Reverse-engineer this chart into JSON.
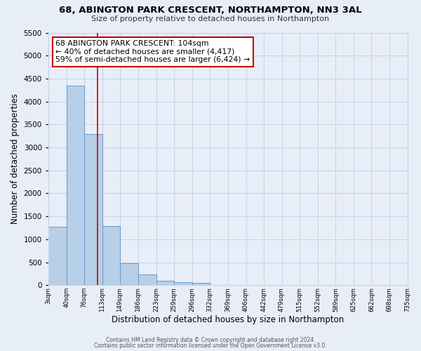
{
  "title": "68, ABINGTON PARK CRESCENT, NORTHAMPTON, NN3 3AL",
  "subtitle": "Size of property relative to detached houses in Northampton",
  "xlabel": "Distribution of detached houses by size in Northampton",
  "ylabel": "Number of detached properties",
  "footer_line1": "Contains HM Land Registry data © Crown copyright and database right 2024.",
  "footer_line2": "Contains public sector information licensed under the Open Government Licence v3.0.",
  "annotation_line1": "68 ABINGTON PARK CRESCENT: 104sqm",
  "annotation_line2": "← 40% of detached houses are smaller (4,417)",
  "annotation_line3": "59% of semi-detached houses are larger (6,424) →",
  "bar_edges": [
    3,
    40,
    76,
    113,
    149,
    186,
    223,
    259,
    296,
    332,
    369,
    406,
    442,
    479,
    515,
    552,
    589,
    625,
    662,
    698,
    735
  ],
  "bar_heights": [
    1270,
    4350,
    3290,
    1290,
    475,
    230,
    90,
    60,
    50,
    0,
    0,
    0,
    0,
    0,
    0,
    0,
    0,
    0,
    0,
    0
  ],
  "property_value": 104,
  "bar_fill_color": "#b8cfe8",
  "bar_edge_color": "#6699cc",
  "red_line_color": "#cc0000",
  "annotation_box_edge_color": "#cc0000",
  "annotation_box_face_color": "#ffffff",
  "grid_color": "#c8d4e8",
  "background_color": "#e8eef8",
  "ylim": [
    0,
    5500
  ],
  "yticks": [
    0,
    500,
    1000,
    1500,
    2000,
    2500,
    3000,
    3500,
    4000,
    4500,
    5000,
    5500
  ]
}
